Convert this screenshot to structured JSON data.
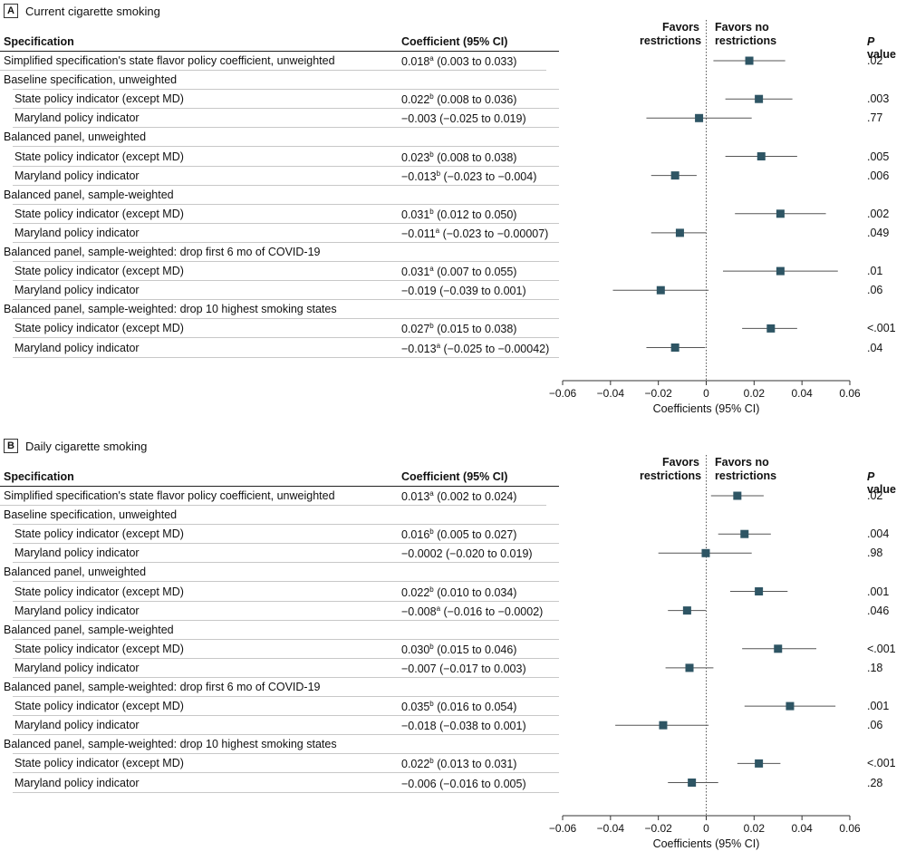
{
  "panels": [
    {
      "letter": "A",
      "title": "Current cigarette smoking",
      "col_spec": "Specification",
      "col_coef": "Coefficient (95% CI)",
      "favors_left": [
        "Favors",
        "restrictions"
      ],
      "favors_right": [
        "Favors no",
        "restrictions"
      ],
      "pval_label": "P",
      "pval_suffix": " value",
      "rows": [
        {
          "type": "data",
          "indent": false,
          "spec": "Simplified specification's state flavor policy coefficient, unweighted",
          "est": "0.018",
          "sup": "a",
          "ci": " (0.003 to 0.033)",
          "p": ".02"
        },
        {
          "type": "group",
          "spec": "Baseline specification, unweighted"
        },
        {
          "type": "data",
          "indent": true,
          "spec": "State policy indicator (except MD)",
          "est": "0.022",
          "sup": "b",
          "ci": " (0.008 to 0.036)",
          "p": ".003"
        },
        {
          "type": "data",
          "indent": true,
          "spec": "Maryland policy indicator",
          "est": "−0.003",
          "sup": "",
          "ci": " (−0.025 to 0.019)",
          "p": ".77"
        },
        {
          "type": "group",
          "spec": "Balanced panel, unweighted"
        },
        {
          "type": "data",
          "indent": true,
          "spec": "State policy indicator (except MD)",
          "est": "0.023",
          "sup": "b",
          "ci": " (0.008 to 0.038)",
          "p": ".005"
        },
        {
          "type": "data",
          "indent": true,
          "spec": "Maryland policy indicator",
          "est": "−0.013",
          "sup": "b",
          "ci": " (−0.023 to −0.004)",
          "p": ".006"
        },
        {
          "type": "group",
          "spec": "Balanced panel, sample-weighted"
        },
        {
          "type": "data",
          "indent": true,
          "spec": "State policy indicator (except MD)",
          "est": "0.031",
          "sup": "b",
          "ci": " (0.012 to 0.050)",
          "p": ".002"
        },
        {
          "type": "data",
          "indent": true,
          "spec": "Maryland policy indicator",
          "est": "−0.011",
          "sup": "a",
          "ci": " (−0.023 to −0.00007)",
          "p": ".049"
        },
        {
          "type": "group",
          "spec": "Balanced panel, sample-weighted: drop first 6 mo of COVID-19"
        },
        {
          "type": "data",
          "indent": true,
          "spec": "State policy indicator (except MD)",
          "est": "0.031",
          "sup": "a",
          "ci": " (0.007 to 0.055)",
          "p": ".01"
        },
        {
          "type": "data",
          "indent": true,
          "spec": "Maryland policy indicator",
          "est": "−0.019",
          "sup": "",
          "ci": " (−0.039 to 0.001)",
          "p": ".06"
        },
        {
          "type": "group",
          "spec": "Balanced panel, sample-weighted: drop 10 highest smoking states"
        },
        {
          "type": "data",
          "indent": true,
          "spec": "State policy indicator (except MD)",
          "est": "0.027",
          "sup": "b",
          "ci": " (0.015 to 0.038)",
          "p": "<.001"
        },
        {
          "type": "data",
          "indent": true,
          "spec": "Maryland policy indicator",
          "est": "−0.013",
          "sup": "a",
          "ci": " (−0.025 to −0.00042)",
          "p": ".04"
        }
      ],
      "axis_label": "Coefficients (95% CI)",
      "tick_labels": [
        "−0.06",
        "−0.04",
        "−0.02",
        "0",
        "0.02",
        "0.04",
        "0.06"
      ]
    },
    {
      "letter": "B",
      "title": "Daily cigarette smoking",
      "col_spec": "Specification",
      "col_coef": "Coefficient (95% CI)",
      "favors_left": [
        "Favors",
        "restrictions"
      ],
      "favors_right": [
        "Favors no",
        "restrictions"
      ],
      "pval_label": "P",
      "pval_suffix": " value",
      "rows": [
        {
          "type": "data",
          "indent": false,
          "spec": "Simplified specification's state flavor policy coefficient, unweighted",
          "est": "0.013",
          "sup": "a",
          "ci": " (0.002 to 0.024)",
          "p": ".02"
        },
        {
          "type": "group",
          "spec": "Baseline specification, unweighted"
        },
        {
          "type": "data",
          "indent": true,
          "spec": "State policy indicator (except MD)",
          "est": "0.016",
          "sup": "b",
          "ci": " (0.005 to 0.027)",
          "p": ".004"
        },
        {
          "type": "data",
          "indent": true,
          "spec": "Maryland policy indicator",
          "est": "−0.0002",
          "sup": "",
          "ci": " (−0.020 to 0.019)",
          "p": ".98"
        },
        {
          "type": "group",
          "spec": "Balanced panel, unweighted"
        },
        {
          "type": "data",
          "indent": true,
          "spec": "State policy indicator (except MD)",
          "est": "0.022",
          "sup": "b",
          "ci": " (0.010 to 0.034)",
          "p": ".001"
        },
        {
          "type": "data",
          "indent": true,
          "spec": "Maryland policy indicator",
          "est": "−0.008",
          "sup": "a",
          "ci": " (−0.016 to −0.0002)",
          "p": ".046"
        },
        {
          "type": "group",
          "spec": "Balanced panel, sample-weighted"
        },
        {
          "type": "data",
          "indent": true,
          "spec": "State policy indicator (except MD)",
          "est": "0.030",
          "sup": "b",
          "ci": " (0.015 to 0.046)",
          "p": "<.001"
        },
        {
          "type": "data",
          "indent": true,
          "spec": "Maryland policy indicator",
          "est": "−0.007",
          "sup": "",
          "ci": " (−0.017 to 0.003)",
          "p": ".18"
        },
        {
          "type": "group",
          "spec": "Balanced panel, sample-weighted: drop first 6 mo of COVID-19"
        },
        {
          "type": "data",
          "indent": true,
          "spec": "State policy indicator (except MD)",
          "est": "0.035",
          "sup": "b",
          "ci": " (0.016 to 0.054)",
          "p": ".001"
        },
        {
          "type": "data",
          "indent": true,
          "spec": "Maryland policy indicator",
          "est": "−0.018",
          "sup": "",
          "ci": " (−0.038 to 0.001)",
          "p": ".06"
        },
        {
          "type": "group",
          "spec": "Balanced panel, sample-weighted: drop 10 highest smoking states"
        },
        {
          "type": "data",
          "indent": true,
          "spec": "State policy indicator (except MD)",
          "est": "0.022",
          "sup": "b",
          "ci": " (0.013 to 0.031)",
          "p": "<.001"
        },
        {
          "type": "data",
          "indent": true,
          "spec": "Maryland policy indicator",
          "est": "−0.006",
          "sup": "",
          "ci": " (−0.016 to 0.005)",
          "p": ".28"
        }
      ],
      "axis_label": "Coefficients (95% CI)",
      "tick_labels": [
        "−0.06",
        "−0.04",
        "−0.02",
        "0",
        "0.02",
        "0.04",
        "0.06"
      ]
    }
  ],
  "colors": {
    "marker": "#2e5564",
    "ci_line": "#555555",
    "zero_line": "#555555",
    "rule": "#c8c8c8"
  },
  "chart_data": [
    {
      "type": "forest",
      "title": "Current cigarette smoking",
      "xlabel": "Coefficients (95% CI)",
      "xlim": [
        -0.06,
        0.06
      ],
      "xticks": [
        -0.06,
        -0.04,
        -0.02,
        0,
        0.02,
        0.04,
        0.06
      ],
      "points": [
        {
          "est": 0.018,
          "lo": 0.003,
          "hi": 0.033
        },
        null,
        {
          "est": 0.022,
          "lo": 0.008,
          "hi": 0.036
        },
        {
          "est": -0.003,
          "lo": -0.025,
          "hi": 0.019
        },
        null,
        {
          "est": 0.023,
          "lo": 0.008,
          "hi": 0.038
        },
        {
          "est": -0.013,
          "lo": -0.023,
          "hi": -0.004
        },
        null,
        {
          "est": 0.031,
          "lo": 0.012,
          "hi": 0.05
        },
        {
          "est": -0.011,
          "lo": -0.023,
          "hi": -7e-05
        },
        null,
        {
          "est": 0.031,
          "lo": 0.007,
          "hi": 0.055
        },
        {
          "est": -0.019,
          "lo": -0.039,
          "hi": 0.001
        },
        null,
        {
          "est": 0.027,
          "lo": 0.015,
          "hi": 0.038
        },
        {
          "est": -0.013,
          "lo": -0.025,
          "hi": -0.00042
        }
      ]
    },
    {
      "type": "forest",
      "title": "Daily cigarette smoking",
      "xlabel": "Coefficients (95% CI)",
      "xlim": [
        -0.06,
        0.06
      ],
      "xticks": [
        -0.06,
        -0.04,
        -0.02,
        0,
        0.02,
        0.04,
        0.06
      ],
      "points": [
        {
          "est": 0.013,
          "lo": 0.002,
          "hi": 0.024
        },
        null,
        {
          "est": 0.016,
          "lo": 0.005,
          "hi": 0.027
        },
        {
          "est": -0.0002,
          "lo": -0.02,
          "hi": 0.019
        },
        null,
        {
          "est": 0.022,
          "lo": 0.01,
          "hi": 0.034
        },
        {
          "est": -0.008,
          "lo": -0.016,
          "hi": -0.0002
        },
        null,
        {
          "est": 0.03,
          "lo": 0.015,
          "hi": 0.046
        },
        {
          "est": -0.007,
          "lo": -0.017,
          "hi": 0.003
        },
        null,
        {
          "est": 0.035,
          "lo": 0.016,
          "hi": 0.054
        },
        {
          "est": -0.018,
          "lo": -0.038,
          "hi": 0.001
        },
        null,
        {
          "est": 0.022,
          "lo": 0.013,
          "hi": 0.031
        },
        {
          "est": -0.006,
          "lo": -0.016,
          "hi": 0.005
        }
      ]
    }
  ]
}
